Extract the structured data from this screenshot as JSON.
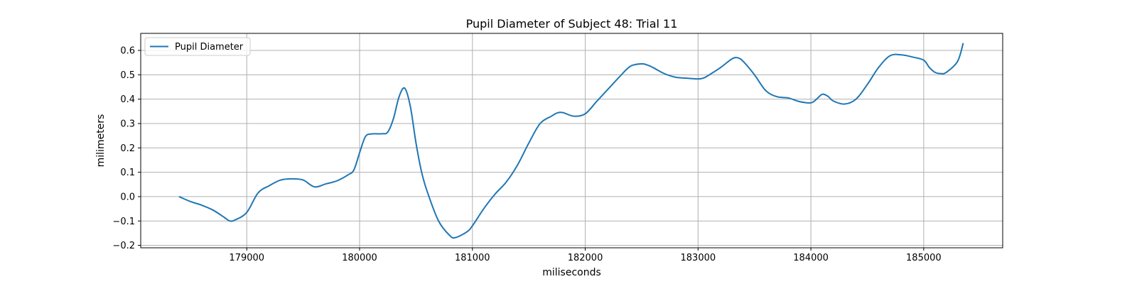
{
  "chart_data": {
    "type": "line",
    "title": "Pupil Diameter of Subject 48: Trial 11",
    "xlabel": "miliseconds",
    "ylabel": "milimeters",
    "xlim": [
      178060,
      185700
    ],
    "ylim": [
      -0.21,
      0.67
    ],
    "xticks": [
      179000,
      180000,
      181000,
      182000,
      183000,
      184000,
      185000
    ],
    "xtick_labels": [
      "179000",
      "180000",
      "181000",
      "182000",
      "183000",
      "184000",
      "185000"
    ],
    "yticks": [
      -0.2,
      -0.1,
      0.0,
      0.1,
      0.2,
      0.3,
      0.4,
      0.5,
      0.6
    ],
    "ytick_labels": [
      "−0.2",
      "−0.1",
      "0.0",
      "0.1",
      "0.2",
      "0.3",
      "0.4",
      "0.5",
      "0.6"
    ],
    "grid": true,
    "legend_position": "top-left",
    "series": [
      {
        "name": "Pupil Diameter",
        "color": "#1f77b4",
        "x": [
          178400,
          178500,
          178600,
          178700,
          178800,
          178850,
          178900,
          179000,
          179100,
          179200,
          179300,
          179400,
          179500,
          179600,
          179700,
          179800,
          179900,
          179950,
          180000,
          180050,
          180100,
          180200,
          180250,
          180300,
          180350,
          180400,
          180450,
          180500,
          180550,
          180600,
          180700,
          180800,
          180850,
          180950,
          181000,
          181100,
          181200,
          181300,
          181400,
          181500,
          181600,
          181700,
          181750,
          181800,
          181900,
          182000,
          182100,
          182200,
          182300,
          182400,
          182500,
          182550,
          182600,
          182700,
          182800,
          182900,
          183000,
          183050,
          183100,
          183200,
          183300,
          183350,
          183400,
          183500,
          183600,
          183700,
          183800,
          183900,
          184000,
          184050,
          184100,
          184150,
          184200,
          184300,
          184400,
          184500,
          184600,
          184700,
          184800,
          184900,
          185000,
          185050,
          185100,
          185150,
          185200,
          185300,
          185350
        ],
        "y": [
          0.0,
          -0.02,
          -0.035,
          -0.055,
          -0.085,
          -0.1,
          -0.095,
          -0.065,
          0.015,
          0.045,
          0.068,
          0.073,
          0.068,
          0.04,
          0.052,
          0.065,
          0.09,
          0.11,
          0.18,
          0.245,
          0.257,
          0.258,
          0.265,
          0.32,
          0.41,
          0.445,
          0.37,
          0.22,
          0.1,
          0.02,
          -0.1,
          -0.16,
          -0.168,
          -0.145,
          -0.12,
          -0.05,
          0.01,
          0.06,
          0.13,
          0.22,
          0.3,
          0.33,
          0.343,
          0.345,
          0.33,
          0.34,
          0.39,
          0.44,
          0.49,
          0.535,
          0.545,
          0.54,
          0.53,
          0.505,
          0.49,
          0.486,
          0.483,
          0.487,
          0.5,
          0.53,
          0.565,
          0.57,
          0.555,
          0.5,
          0.435,
          0.41,
          0.405,
          0.39,
          0.385,
          0.4,
          0.42,
          0.412,
          0.392,
          0.38,
          0.4,
          0.46,
          0.53,
          0.578,
          0.582,
          0.573,
          0.56,
          0.53,
          0.51,
          0.505,
          0.51,
          0.555,
          0.63
        ]
      }
    ]
  }
}
